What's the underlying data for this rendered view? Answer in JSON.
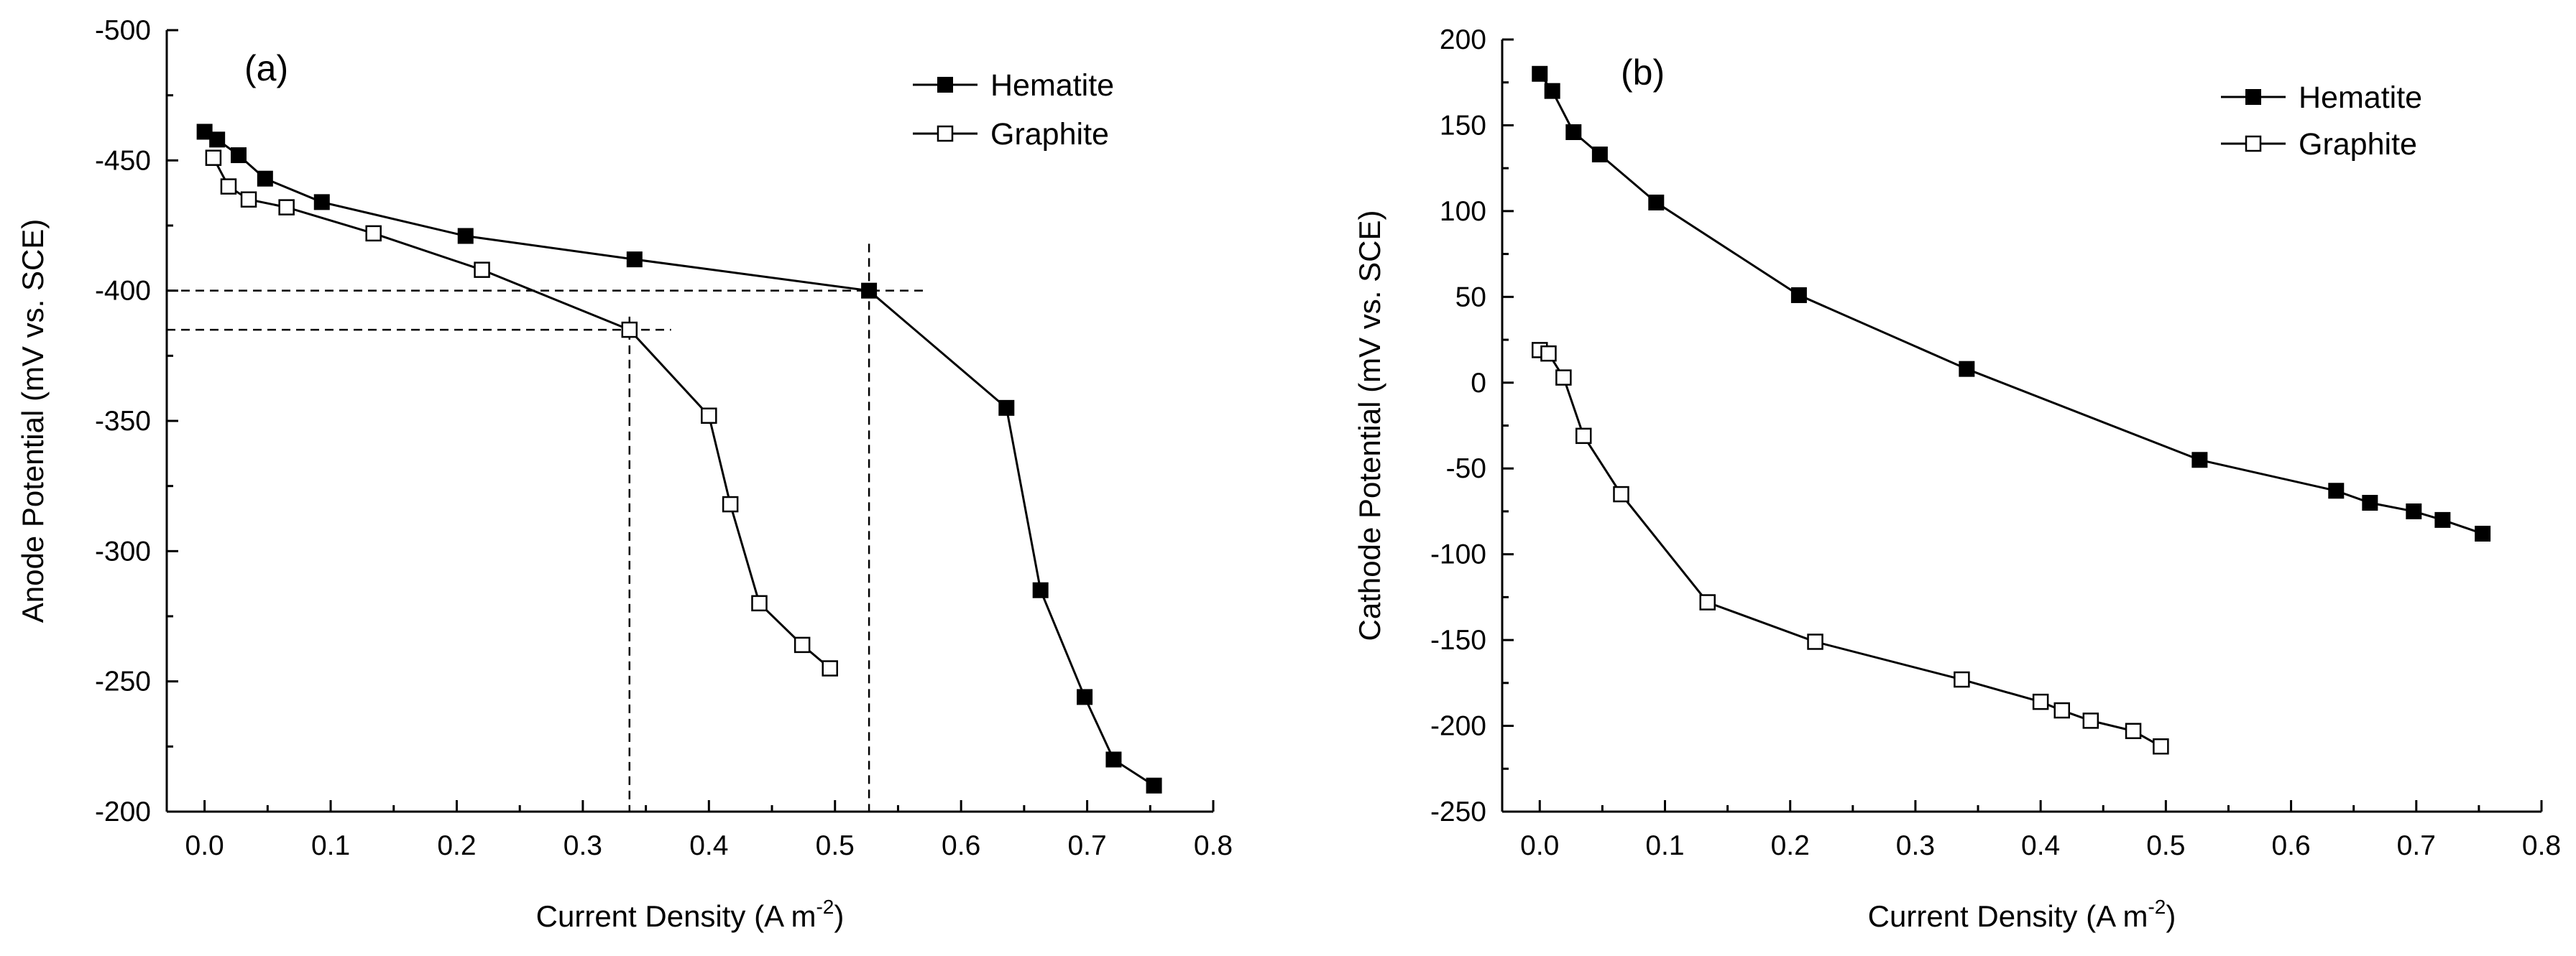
{
  "chart_data": [
    {
      "type": "line",
      "panel_label": "(a)",
      "xlabel": "Current Density (A m",
      "xlabel_sup": "-2",
      "xlabel_end": ")",
      "ylabel": "Anode Potential (mV vs. SCE)",
      "xlim": [
        -0.03,
        0.8
      ],
      "ylim": [
        -200,
        -500
      ],
      "y_inverted": true,
      "xticks": [
        0.0,
        0.1,
        0.2,
        0.3,
        0.4,
        0.5,
        0.6,
        0.7,
        0.8
      ],
      "xtick_labels": [
        "0.0",
        "0.1",
        "0.2",
        "0.3",
        "0.4",
        "0.5",
        "0.6",
        "0.7",
        "0.8"
      ],
      "yticks": [
        -500,
        -450,
        -400,
        -350,
        -300,
        -250,
        -200
      ],
      "ytick_labels": [
        "-500",
        "-450",
        "-400",
        "-350",
        "-300",
        "-250",
        "-200"
      ],
      "legend_position": "top-right",
      "series": [
        {
          "name": "Hematite",
          "marker": "filled-square",
          "x": [
            0.0,
            0.01,
            0.027,
            0.048,
            0.093,
            0.207,
            0.341,
            0.527,
            0.636,
            0.663,
            0.698,
            0.721,
            0.753
          ],
          "y": [
            -461,
            -458,
            -452,
            -443,
            -434,
            -421,
            -412,
            -400,
            -355,
            -285,
            -244,
            -220,
            -210
          ]
        },
        {
          "name": "Graphite",
          "marker": "open-square",
          "x": [
            0.007,
            0.019,
            0.035,
            0.065,
            0.134,
            0.22,
            0.337,
            0.4,
            0.417,
            0.44,
            0.474,
            0.496
          ],
          "y": [
            -451,
            -440,
            -435,
            -432,
            -422,
            -408,
            -385,
            -352,
            -318,
            -280,
            -264,
            -255
          ]
        }
      ],
      "reference_lines": [
        {
          "kind": "horizontal",
          "y": -400,
          "x_from": -0.03,
          "x_to": 0.57
        },
        {
          "kind": "horizontal",
          "y": -385,
          "x_from": -0.03,
          "x_to": 0.37
        },
        {
          "kind": "vertical",
          "x": 0.337,
          "y_from": -390,
          "y_to": -200
        },
        {
          "kind": "vertical",
          "x": 0.527,
          "y_from": -418,
          "y_to": -200
        }
      ]
    },
    {
      "type": "line",
      "panel_label": "(b)",
      "xlabel": "Current Density (A m",
      "xlabel_sup": "-2",
      "xlabel_end": ")",
      "ylabel": "Cathode Potential (mV vs. SCE)",
      "xlim": [
        -0.03,
        0.8
      ],
      "ylim": [
        -250,
        200
      ],
      "y_inverted": false,
      "xticks": [
        0.0,
        0.1,
        0.2,
        0.3,
        0.4,
        0.5,
        0.6,
        0.7,
        0.8
      ],
      "xtick_labels": [
        "0.0",
        "0.1",
        "0.2",
        "0.3",
        "0.4",
        "0.5",
        "0.6",
        "0.7",
        "0.8"
      ],
      "yticks": [
        200,
        150,
        100,
        50,
        0,
        -50,
        -100,
        -150,
        -200,
        -250
      ],
      "ytick_labels": [
        "200",
        "150",
        "100",
        "50",
        "0",
        "-50",
        "-100",
        "-150",
        "-200",
        "-250"
      ],
      "legend_position": "top-right",
      "series": [
        {
          "name": "Hematite",
          "marker": "filled-square",
          "x": [
            0.0,
            0.01,
            0.027,
            0.048,
            0.093,
            0.207,
            0.341,
            0.527,
            0.636,
            0.663,
            0.698,
            0.721,
            0.753
          ],
          "y": [
            180,
            170,
            146,
            133,
            105,
            51,
            8,
            -45,
            -63,
            -70,
            -75,
            -80,
            -88
          ]
        },
        {
          "name": "Graphite",
          "marker": "open-square",
          "x": [
            0.0,
            0.007,
            0.019,
            0.035,
            0.065,
            0.134,
            0.22,
            0.337,
            0.4,
            0.417,
            0.44,
            0.474,
            0.496
          ],
          "y": [
            19,
            17,
            3,
            -31,
            -65,
            -128,
            -151,
            -173,
            -186,
            -191,
            -197,
            -203,
            -212
          ]
        }
      ],
      "reference_lines": []
    }
  ]
}
